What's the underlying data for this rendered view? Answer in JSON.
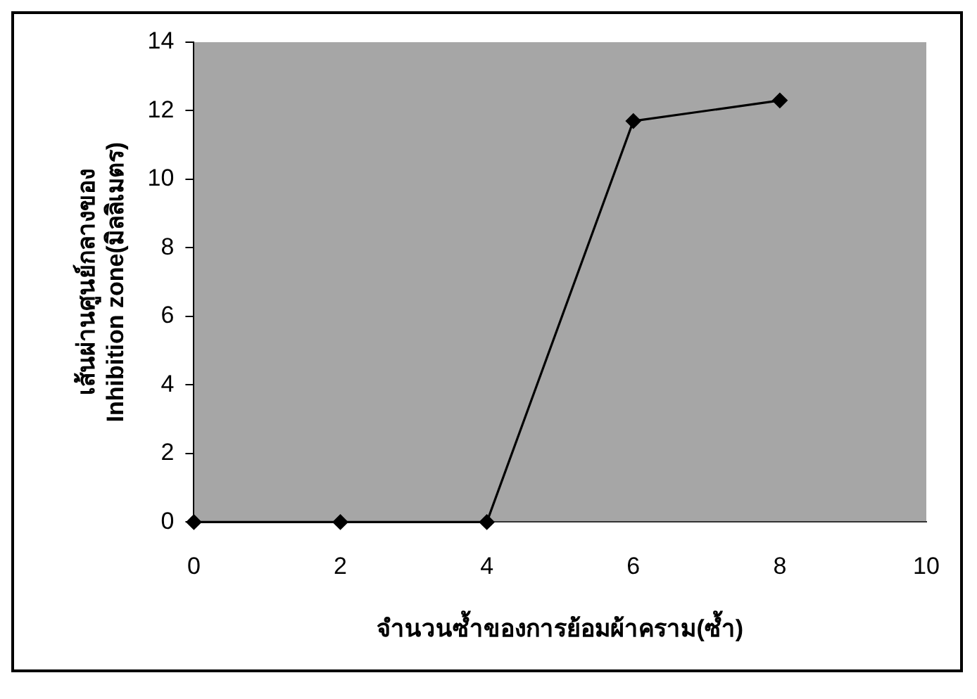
{
  "chart_data": {
    "type": "line",
    "xlabel": "จำนวนซ้ำของการย้อมผ้าคราม(ซ้ำ)",
    "ylabel": "เส้นผ่านศูนย์กลางของ\nInhibition zone(มิลลิเมตร)",
    "x": [
      0,
      2,
      4,
      6,
      8
    ],
    "series": [
      {
        "color": "#000000",
        "values": [
          0,
          0,
          0,
          11.7,
          12.3
        ]
      }
    ],
    "xlim": [
      0,
      10
    ],
    "xticks": [
      0,
      2,
      4,
      6,
      8,
      10
    ],
    "ylim": [
      0,
      14
    ],
    "yticks": [
      0,
      2,
      4,
      6,
      8,
      10,
      12,
      14
    ],
    "marker": "diamond",
    "line_style": "solid",
    "grid": false,
    "legend": false
  }
}
